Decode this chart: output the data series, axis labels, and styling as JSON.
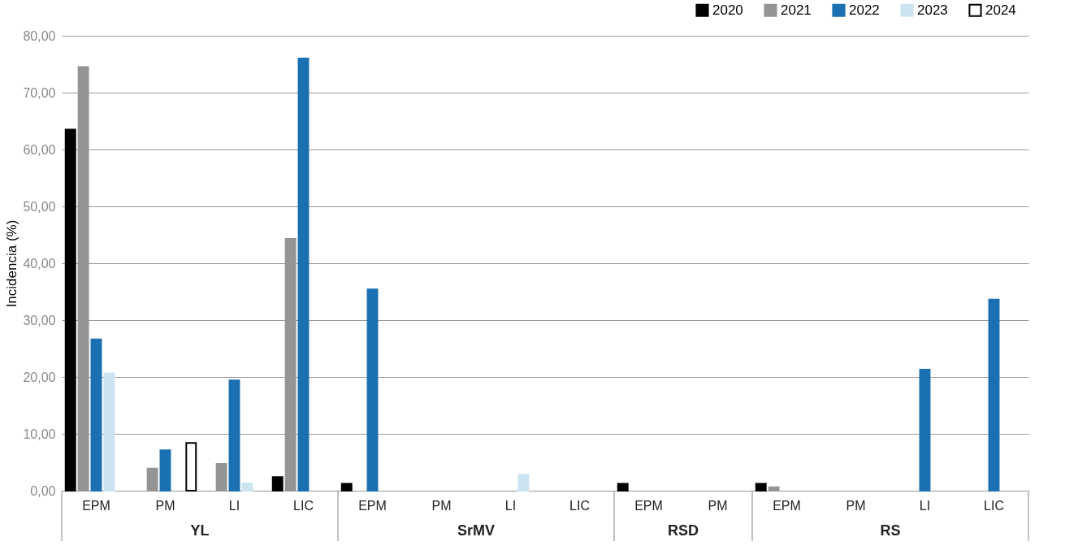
{
  "chart_data": {
    "type": "bar",
    "ylabel": "Incidencia (%)",
    "categories": [
      "EPM",
      "PM",
      "LI",
      "LIC",
      "EPM",
      "PM",
      "LI",
      "LIC",
      "EPM",
      "PM",
      "EPM",
      "PM",
      "LI",
      "LIC"
    ],
    "annotations": [
      "YL",
      "SrMV",
      "RSD",
      "RS"
    ],
    "series": [
      {
        "name": "2020",
        "color": "#000000",
        "values": [
          63.5,
          null,
          null,
          2.4,
          1.2,
          null,
          null,
          null,
          1.2,
          null,
          1.2,
          null,
          null,
          null
        ]
      },
      {
        "name": "2021",
        "color": "#949494",
        "values": [
          74.5,
          3.9,
          4.7,
          44.3,
          null,
          null,
          null,
          null,
          null,
          null,
          0.6,
          null,
          null,
          null
        ]
      },
      {
        "name": "2022",
        "color": "#1a70b0",
        "values": [
          26.6,
          7.1,
          19.4,
          76.0,
          35.4,
          null,
          null,
          null,
          null,
          null,
          null,
          null,
          21.3,
          33.6
        ]
      },
      {
        "name": "2023",
        "color": "#cce3f2",
        "values": [
          20.6,
          null,
          1.3,
          null,
          null,
          null,
          2.8,
          null,
          null,
          null,
          null,
          null,
          null,
          null
        ]
      },
      {
        "name": "2024",
        "color": "#ffffff",
        "values": [
          null,
          8.4,
          null,
          null,
          null,
          null,
          null,
          null,
          null,
          null,
          null,
          null,
          null,
          null
        ]
      }
    ],
    "ylim": [
      0,
      80
    ],
    "yticks": [
      {
        "value": 0,
        "label": "0,00"
      },
      {
        "value": 10,
        "label": "10,00"
      },
      {
        "value": 20,
        "label": "20,00"
      },
      {
        "value": 30,
        "label": "30,00"
      },
      {
        "value": 40,
        "label": "40,00"
      },
      {
        "value": 50,
        "label": "50,00"
      },
      {
        "value": 60,
        "label": "60,00"
      },
      {
        "value": 70,
        "label": "70,00"
      },
      {
        "value": 80,
        "label": "80,00"
      }
    ],
    "grid": "y",
    "legend": "top right"
  }
}
